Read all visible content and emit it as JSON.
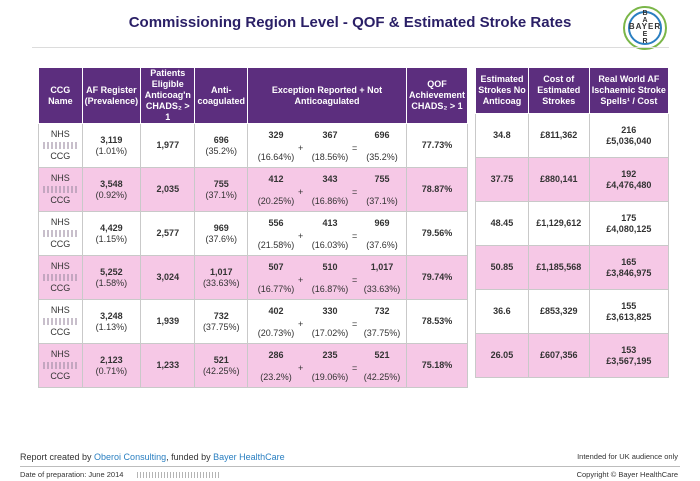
{
  "title": "Commissioning Region Level - QOF & Estimated Stroke Rates",
  "logo": {
    "horizontal": "BAYER",
    "vertical": [
      "B",
      "A",
      "Y",
      "E",
      "R"
    ]
  },
  "left_headers": [
    "CCG Name",
    "AF Register (Prevalence)",
    "Patients Eligible Anticoag'n CHADS₂ > 1",
    "Anti-coagulated",
    "Exception Reported + Not Anticoagulated",
    "QOF Achievement CHADS₂ > 1"
  ],
  "right_headers": [
    "Estimated Strokes No Anticoag",
    "Cost of Estimated Strokes",
    "Real World AF Ischaemic Stroke Spells¹ / Cost"
  ],
  "rows": [
    {
      "ccg_line1": "NHS",
      "ccg_line2": "CCG",
      "af": "3,119",
      "af_pct": "(1.01%)",
      "eligible": "1,977",
      "anti": "696",
      "anti_pct": "(35.2%)",
      "exc_a": "329",
      "exc_a_pct": "(16.64%)",
      "exc_b": "367",
      "exc_b_pct": "(18.56%)",
      "exc_sum": "696",
      "exc_sum_pct": "(35.2%)",
      "qof": "77.73%",
      "strokes": "34.8",
      "cost": "£811,362",
      "spells": "216",
      "spells_cost": "£5,036,040"
    },
    {
      "ccg_line1": "NHS",
      "ccg_line2": "CCG",
      "af": "3,548",
      "af_pct": "(0.92%)",
      "eligible": "2,035",
      "anti": "755",
      "anti_pct": "(37.1%)",
      "exc_a": "412",
      "exc_a_pct": "(20.25%)",
      "exc_b": "343",
      "exc_b_pct": "(16.86%)",
      "exc_sum": "755",
      "exc_sum_pct": "(37.1%)",
      "qof": "78.87%",
      "strokes": "37.75",
      "cost": "£880,141",
      "spells": "192",
      "spells_cost": "£4,476,480"
    },
    {
      "ccg_line1": "NHS",
      "ccg_line2": "CCG",
      "af": "4,429",
      "af_pct": "(1.15%)",
      "eligible": "2,577",
      "anti": "969",
      "anti_pct": "(37.6%)",
      "exc_a": "556",
      "exc_a_pct": "(21.58%)",
      "exc_b": "413",
      "exc_b_pct": "(16.03%)",
      "exc_sum": "969",
      "exc_sum_pct": "(37.6%)",
      "qof": "79.56%",
      "strokes": "48.45",
      "cost": "£1,129,612",
      "spells": "175",
      "spells_cost": "£4,080,125"
    },
    {
      "ccg_line1": "NHS",
      "ccg_line2": "CCG",
      "af": "5,252",
      "af_pct": "(1.58%)",
      "eligible": "3,024",
      "anti": "1,017",
      "anti_pct": "(33.63%)",
      "exc_a": "507",
      "exc_a_pct": "(16.77%)",
      "exc_b": "510",
      "exc_b_pct": "(16.87%)",
      "exc_sum": "1,017",
      "exc_sum_pct": "(33.63%)",
      "qof": "79.74%",
      "strokes": "50.85",
      "cost": "£1,185,568",
      "spells": "165",
      "spells_cost": "£3,846,975"
    },
    {
      "ccg_line1": "NHS",
      "ccg_line2": "CCG",
      "af": "3,248",
      "af_pct": "(1.13%)",
      "eligible": "1,939",
      "anti": "732",
      "anti_pct": "(37.75%)",
      "exc_a": "402",
      "exc_a_pct": "(20.73%)",
      "exc_b": "330",
      "exc_b_pct": "(17.02%)",
      "exc_sum": "732",
      "exc_sum_pct": "(37.75%)",
      "qof": "78.53%",
      "strokes": "36.6",
      "cost": "£853,329",
      "spells": "155",
      "spells_cost": "£3,613,825"
    },
    {
      "ccg_line1": "NHS",
      "ccg_line2": "CCG",
      "af": "2,123",
      "af_pct": "(0.71%)",
      "eligible": "1,233",
      "anti": "521",
      "anti_pct": "(42.25%)",
      "exc_a": "286",
      "exc_a_pct": "(23.2%)",
      "exc_b": "235",
      "exc_b_pct": "(19.06%)",
      "exc_sum": "521",
      "exc_sum_pct": "(42.25%)",
      "qof": "75.18%",
      "strokes": "26.05",
      "cost": "£607,356",
      "spells": "153",
      "spells_cost": "£3,567,195"
    }
  ],
  "footer": {
    "report_prefix": "Report created by ",
    "report_company": "Oberoi Consulting",
    "report_middle": ", funded by ",
    "report_funder": "Bayer HealthCare",
    "audience": "Intended for UK audience only",
    "date": "Date of preparation: June 2014",
    "copyright": "Copyright © Bayer HealthCare"
  }
}
